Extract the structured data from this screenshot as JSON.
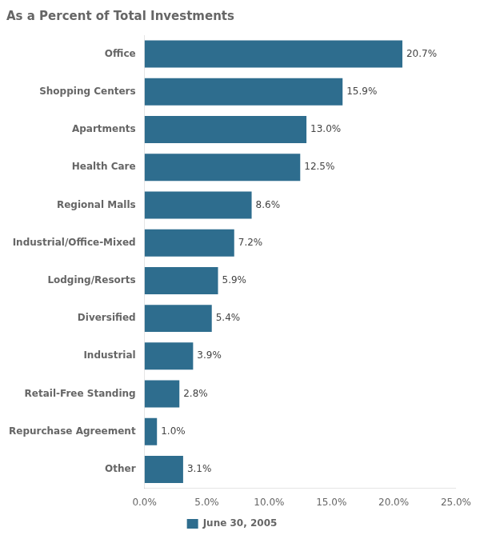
{
  "chart_data": {
    "type": "bar",
    "orientation": "horizontal",
    "title": "As a Percent of Total Investments",
    "categories": [
      "Office",
      "Shopping Centers",
      "Apartments",
      "Health Care",
      "Regional Malls",
      "Industrial/Office-Mixed",
      "Lodging/Resorts",
      "Diversified",
      "Industrial",
      "Retail-Free Standing",
      "Repurchase Agreement",
      "Other"
    ],
    "series": [
      {
        "name": "June 30, 2005",
        "color": "#2E6D8E",
        "values": [
          20.7,
          15.9,
          13.0,
          12.5,
          8.6,
          7.2,
          5.9,
          5.4,
          3.9,
          2.8,
          1.0,
          3.1
        ],
        "value_labels": [
          "20.7%",
          "15.9%",
          "13.0%",
          "12.5%",
          "8.6%",
          "7.2%",
          "5.9%",
          "5.4%",
          "3.9%",
          "2.8%",
          "1.0%",
          "3.1%"
        ]
      }
    ],
    "xlim": [
      0,
      25.0
    ],
    "xticks": [
      {
        "value": 0,
        "label": "0.0%"
      },
      {
        "value": 5,
        "label": "5.0%"
      },
      {
        "value": 10,
        "label": "10.0%"
      },
      {
        "value": 15,
        "label": "15.0%"
      },
      {
        "value": 20,
        "label": "20.0%"
      },
      {
        "value": 25,
        "label": "25.0%"
      }
    ],
    "data_labels": true,
    "grid": false,
    "legend": "bottom"
  }
}
